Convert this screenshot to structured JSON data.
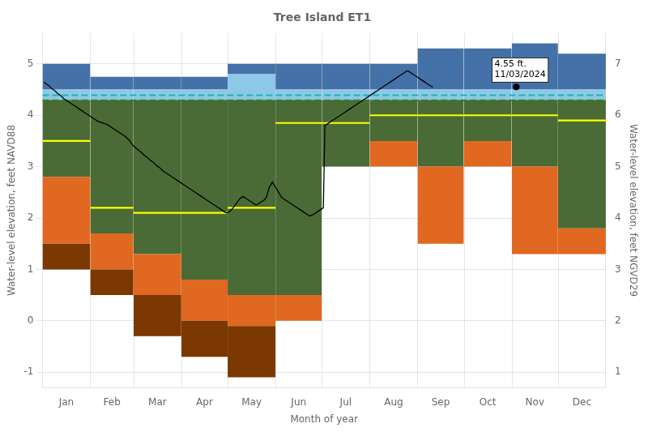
{
  "chart_data": {
    "type": "percentile_bands",
    "title": "Tree Island ET1",
    "xlabel": "Month of year",
    "ylabel": "Water-level elevation, feet NAVD88",
    "y2label": "Water-level elevation, feet NGVD29",
    "xlim": [
      0,
      365
    ],
    "xticks": [
      {
        "value": 15.5,
        "label": "Jan"
      },
      {
        "value": 45,
        "label": "Feb"
      },
      {
        "value": 74.5,
        "label": "Mar"
      },
      {
        "value": 105,
        "label": "Apr"
      },
      {
        "value": 135.5,
        "label": "May"
      },
      {
        "value": 166,
        "label": "Jun"
      },
      {
        "value": 196.5,
        "label": "Jul"
      },
      {
        "value": 227.5,
        "label": "Aug"
      },
      {
        "value": 258,
        "label": "Sep"
      },
      {
        "value": 288.5,
        "label": "Oct"
      },
      {
        "value": 319,
        "label": "Nov"
      },
      {
        "value": 349.5,
        "label": "Dec"
      }
    ],
    "ylim": [
      -1.3,
      5.6
    ],
    "yticks": [
      -1,
      0,
      1,
      2,
      3,
      4,
      5
    ],
    "y2lim": [
      0.7,
      7.6
    ],
    "y2ticks": [
      1,
      2,
      3,
      4,
      5,
      6,
      7
    ],
    "grid": true,
    "bins": [
      0,
      31,
      59,
      90,
      120,
      151,
      181,
      212,
      243,
      273,
      304,
      334,
      365
    ],
    "bands": [
      {
        "color": "#7B3800",
        "low": [
          1.0,
          0.5,
          -0.3,
          -0.7,
          -1.1,
          0.0,
          3.0,
          3.0,
          1.5,
          3.0,
          1.3,
          1.3
        ],
        "high": [
          1.5,
          1.0,
          0.5,
          0.0,
          -0.1,
          0.0,
          3.0,
          3.0,
          1.5,
          3.0,
          1.3,
          1.3
        ]
      },
      {
        "color": "#E06820",
        "low": [
          1.5,
          1.0,
          0.5,
          0.0,
          -0.1,
          0.0,
          3.0,
          3.0,
          1.5,
          3.0,
          1.3,
          1.3
        ],
        "high": [
          2.8,
          1.7,
          1.3,
          0.8,
          0.5,
          0.5,
          3.0,
          3.5,
          3.0,
          3.5,
          3.0,
          1.8
        ]
      },
      {
        "color": "#4A6B35",
        "low": [
          2.8,
          1.7,
          1.3,
          0.8,
          0.5,
          0.5,
          3.0,
          3.5,
          3.0,
          3.5,
          3.0,
          1.8
        ],
        "high": [
          4.3,
          4.3,
          4.3,
          4.3,
          4.3,
          4.3,
          4.3,
          4.3,
          4.3,
          4.3,
          4.3,
          4.3
        ]
      },
      {
        "color": "#8EC8E8",
        "low": [
          4.3,
          4.3,
          4.3,
          4.3,
          4.3,
          4.3,
          4.3,
          4.3,
          4.3,
          4.3,
          4.3,
          4.3
        ],
        "high": [
          4.5,
          4.5,
          4.5,
          4.5,
          4.8,
          4.5,
          4.5,
          4.5,
          4.5,
          4.5,
          4.5,
          4.5
        ]
      },
      {
        "color": "#4472A8",
        "low": [
          4.5,
          4.5,
          4.5,
          4.5,
          4.8,
          4.5,
          4.5,
          4.5,
          4.5,
          4.5,
          4.5,
          4.5
        ],
        "high": [
          5.0,
          4.75,
          4.75,
          4.75,
          5.0,
          5.0,
          5.0,
          5.0,
          5.3,
          5.3,
          5.4,
          5.2
        ]
      }
    ],
    "median": {
      "color": "#FFFF00",
      "values": [
        3.5,
        2.2,
        2.1,
        2.1,
        2.2,
        3.85,
        3.85,
        4.0,
        4.0,
        4.0,
        4.0,
        3.9
      ]
    },
    "hlines": [
      {
        "y": 4.29,
        "color": "#228B22",
        "line_style": "dashed"
      },
      {
        "y": 4.39,
        "color": "#20B2AA",
        "line_style": "dashed"
      }
    ],
    "series": [
      {
        "type": "line",
        "color": "black",
        "x": [
          1,
          2,
          3,
          4,
          5,
          6,
          7,
          8,
          9,
          10,
          11,
          12,
          13,
          14,
          15,
          16,
          17,
          18,
          19,
          20,
          21,
          22,
          23,
          24,
          25,
          26,
          27,
          28,
          29,
          30,
          31,
          32,
          33,
          34,
          35,
          36,
          37,
          38,
          39,
          40,
          41,
          42,
          43,
          44,
          45,
          46,
          47,
          48,
          49,
          50,
          51,
          52,
          53,
          54,
          55,
          56,
          57,
          58,
          59,
          60,
          61,
          62,
          63,
          64,
          65,
          66,
          67,
          68,
          69,
          70,
          71,
          72,
          73,
          74,
          75,
          76,
          77,
          78,
          79,
          80,
          81,
          82,
          83,
          84,
          85,
          86,
          87,
          88,
          89,
          90,
          91,
          92,
          93,
          94,
          95,
          96,
          97,
          98,
          99,
          100,
          101,
          102,
          103,
          104,
          105,
          106,
          107,
          108,
          109,
          110,
          111,
          112,
          113,
          114,
          115,
          116,
          117,
          118,
          119,
          120,
          121,
          122,
          123,
          124,
          125,
          126,
          127,
          128,
          129,
          130,
          131,
          132,
          133,
          134,
          135,
          136,
          137,
          138,
          139,
          140,
          141,
          142,
          143,
          144,
          145,
          146,
          147,
          148,
          149,
          150,
          151,
          152,
          153,
          154,
          155,
          156,
          157,
          158,
          159,
          160,
          161,
          162,
          163,
          164,
          165,
          166,
          167,
          168,
          169,
          170,
          171,
          172,
          173,
          174,
          175,
          176,
          177,
          178,
          179,
          180,
          181,
          182,
          183,
          184,
          185,
          186,
          187,
          188,
          189,
          190,
          191,
          192,
          193,
          194,
          195,
          196,
          197,
          198,
          199,
          200,
          201,
          202,
          203,
          204,
          205,
          206,
          207,
          208,
          209,
          210,
          211,
          212,
          213,
          214,
          215,
          216,
          217,
          218,
          219,
          220,
          221,
          222,
          223,
          224,
          225,
          226,
          227,
          228,
          229,
          230,
          231,
          232,
          233,
          234,
          235,
          236,
          237,
          238,
          239,
          240,
          241,
          242,
          243,
          244,
          245,
          246,
          247,
          248,
          249,
          250,
          251,
          252,
          253
        ],
        "values": [
          4.65,
          4.62,
          4.6,
          4.58,
          4.55,
          4.52,
          4.5,
          4.48,
          4.45,
          4.42,
          4.4,
          4.38,
          4.35,
          4.32,
          4.3,
          4.28,
          4.26,
          4.24,
          4.22,
          4.2,
          4.18,
          4.16,
          4.14,
          4.12,
          4.1,
          4.08,
          4.06,
          4.04,
          4.02,
          4.0,
          3.98,
          3.96,
          3.94,
          3.92,
          3.9,
          3.88,
          3.87,
          3.86,
          3.85,
          3.84,
          3.83,
          3.82,
          3.8,
          3.78,
          3.76,
          3.74,
          3.72,
          3.7,
          3.68,
          3.66,
          3.64,
          3.62,
          3.6,
          3.58,
          3.55,
          3.52,
          3.48,
          3.44,
          3.4,
          3.38,
          3.35,
          3.33,
          3.3,
          3.28,
          3.25,
          3.22,
          3.2,
          3.18,
          3.15,
          3.12,
          3.1,
          3.08,
          3.05,
          3.02,
          3.0,
          2.98,
          2.95,
          2.92,
          2.9,
          2.88,
          2.86,
          2.84,
          2.82,
          2.8,
          2.78,
          2.76,
          2.74,
          2.72,
          2.7,
          2.68,
          2.66,
          2.64,
          2.62,
          2.6,
          2.58,
          2.56,
          2.54,
          2.52,
          2.5,
          2.48,
          2.46,
          2.44,
          2.42,
          2.4,
          2.38,
          2.36,
          2.34,
          2.32,
          2.3,
          2.28,
          2.26,
          2.24,
          2.22,
          2.2,
          2.18,
          2.16,
          2.14,
          2.12,
          2.1,
          2.1,
          2.12,
          2.15,
          2.18,
          2.22,
          2.26,
          2.3,
          2.34,
          2.38,
          2.4,
          2.42,
          2.4,
          2.38,
          2.36,
          2.34,
          2.32,
          2.3,
          2.28,
          2.26,
          2.26,
          2.28,
          2.3,
          2.32,
          2.34,
          2.36,
          2.4,
          2.5,
          2.6,
          2.65,
          2.7,
          2.65,
          2.6,
          2.55,
          2.5,
          2.45,
          2.4,
          2.38,
          2.36,
          2.34,
          2.32,
          2.3,
          2.28,
          2.26,
          2.24,
          2.22,
          2.2,
          2.18,
          2.16,
          2.14,
          2.12,
          2.1,
          2.08,
          2.06,
          2.04,
          2.05,
          2.06,
          2.08,
          2.1,
          2.12,
          2.14,
          2.16,
          2.18,
          2.2,
          3.8,
          3.82,
          3.84,
          3.86,
          3.88,
          3.9,
          3.92,
          3.94,
          3.96,
          3.98,
          4.0,
          4.02,
          4.04,
          4.06,
          4.08,
          4.1,
          4.12,
          4.14,
          4.16,
          4.18,
          4.2,
          4.22,
          4.24,
          4.26,
          4.28,
          4.3,
          4.32,
          4.34,
          4.36,
          4.38,
          4.4,
          4.42,
          4.44,
          4.46,
          4.48,
          4.5,
          4.52,
          4.54,
          4.56,
          4.58,
          4.6,
          4.62,
          4.64,
          4.66,
          4.68,
          4.7,
          4.72,
          4.74,
          4.76,
          4.78,
          4.8,
          4.82,
          4.84,
          4.86,
          4.86,
          4.84,
          4.82,
          4.8,
          4.78,
          4.76,
          4.74,
          4.72,
          4.7,
          4.68,
          4.66,
          4.64,
          4.62,
          4.6,
          4.58,
          4.56,
          4.55
        ]
      },
      {
        "type": "scatter",
        "color": "black",
        "marker": "circle",
        "x": [
          307
        ],
        "values": [
          4.55
        ]
      }
    ],
    "annotations": [
      {
        "x": 307,
        "y": 4.55,
        "text": "4.55 ft.\n11/03/2024"
      }
    ]
  }
}
